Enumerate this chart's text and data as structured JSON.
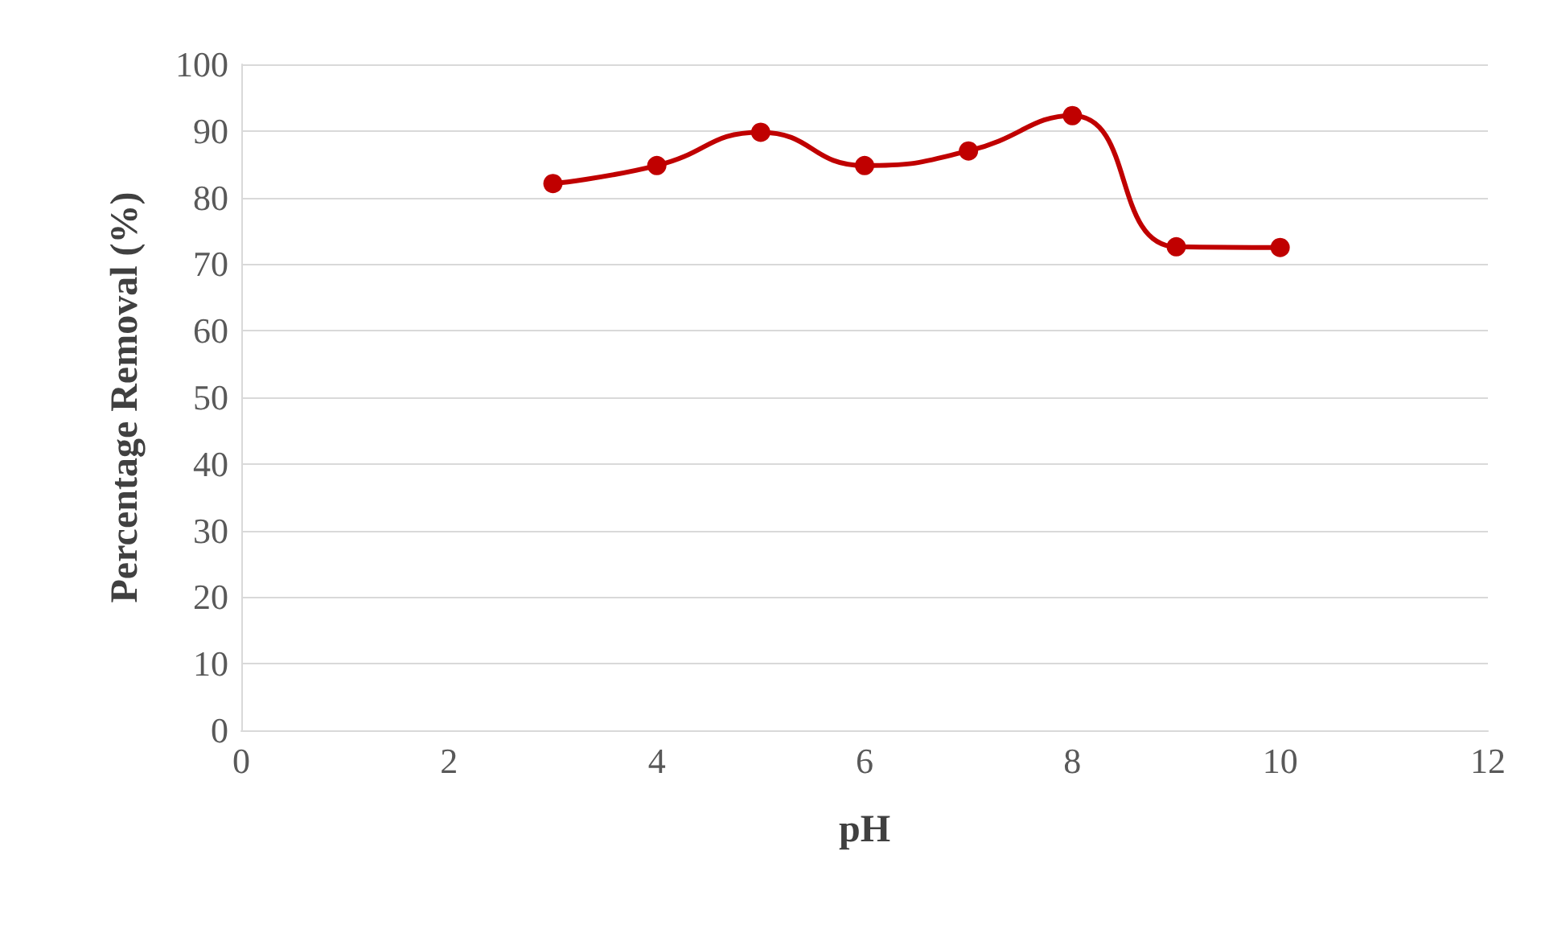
{
  "chart_data": {
    "type": "line",
    "xlabel": "pH",
    "ylabel": "Percentage Removal (%)",
    "x": [
      3,
      4,
      5,
      6,
      7,
      8,
      9,
      10
    ],
    "series": [
      {
        "color": "#c00000",
        "values": [
          82.1,
          84.8,
          89.8,
          84.8,
          87.0,
          92.3,
          72.6,
          72.5
        ]
      }
    ],
    "xlim": [
      0,
      12
    ],
    "xticks": [
      0,
      2,
      4,
      6,
      8,
      10,
      12
    ],
    "ylim": [
      0,
      100
    ],
    "yticks": [
      0,
      10,
      20,
      30,
      40,
      50,
      60,
      70,
      80,
      90,
      100
    ],
    "grid": "y",
    "marker": "circle",
    "line_style": "solid"
  }
}
